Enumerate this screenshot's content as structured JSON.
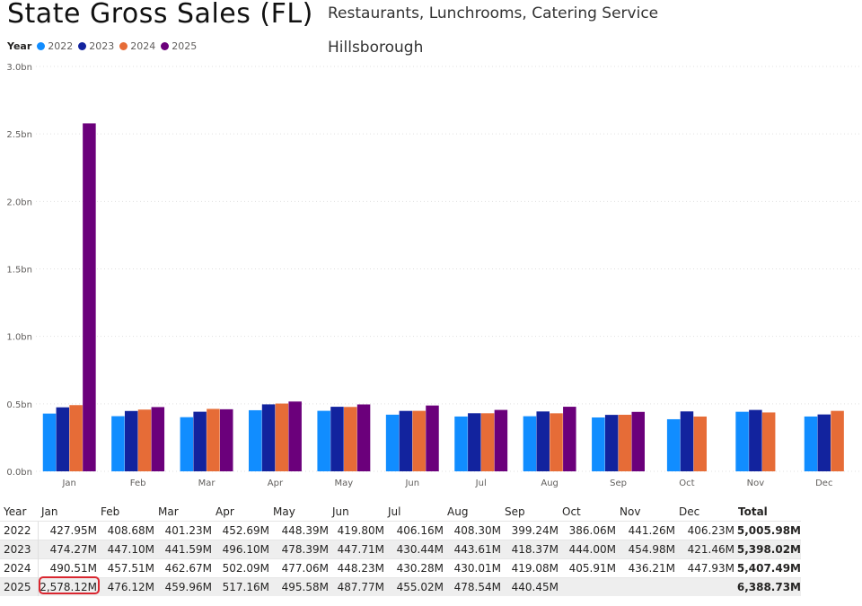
{
  "title": "State Gross Sales (FL)",
  "subtitle": "Restaurants, Lunchrooms, Catering Service",
  "county": "Hillsborough",
  "legend": {
    "title": "Year",
    "items": [
      {
        "label": "2022",
        "color": "#118DFF"
      },
      {
        "label": "2023",
        "color": "#12239E"
      },
      {
        "label": "2024",
        "color": "#E66C37"
      },
      {
        "label": "2025",
        "color": "#6B007B"
      }
    ]
  },
  "chart_data": {
    "type": "bar",
    "categories": [
      "Jan",
      "Feb",
      "Mar",
      "Apr",
      "May",
      "Jun",
      "Jul",
      "Aug",
      "Sep",
      "Oct",
      "Nov",
      "Dec"
    ],
    "series": [
      {
        "name": "2022",
        "values": [
          427.95,
          408.68,
          401.23,
          452.69,
          448.39,
          419.8,
          406.16,
          408.3,
          399.24,
          386.06,
          441.26,
          406.23
        ]
      },
      {
        "name": "2023",
        "values": [
          474.27,
          447.1,
          441.59,
          496.1,
          478.39,
          447.71,
          430.44,
          443.61,
          418.37,
          444.0,
          454.98,
          421.46
        ]
      },
      {
        "name": "2024",
        "values": [
          490.51,
          457.51,
          462.67,
          502.09,
          477.06,
          448.23,
          430.28,
          430.01,
          419.08,
          405.91,
          436.21,
          447.93
        ]
      },
      {
        "name": "2025",
        "values": [
          2578.12,
          476.12,
          459.96,
          517.16,
          495.58,
          487.77,
          455.02,
          478.54,
          440.45,
          null,
          null,
          null
        ]
      }
    ],
    "units": "M",
    "ylim": [
      0,
      3000
    ],
    "yticks": [
      {
        "value": 0,
        "label": "0.0bn"
      },
      {
        "value": 500,
        "label": "0.5bn"
      },
      {
        "value": 1000,
        "label": "1.0bn"
      },
      {
        "value": 1500,
        "label": "1.5bn"
      },
      {
        "value": 2000,
        "label": "2.0bn"
      },
      {
        "value": 2500,
        "label": "2.5bn"
      },
      {
        "value": 3000,
        "label": "3.0bn"
      }
    ],
    "grid": true,
    "legend_position": "top-left"
  },
  "table": {
    "headers": [
      "Year",
      "Jan",
      "Feb",
      "Mar",
      "Apr",
      "May",
      "Jun",
      "Jul",
      "Aug",
      "Sep",
      "Oct",
      "Nov",
      "Dec",
      "Total"
    ],
    "rows": [
      {
        "year": "2022",
        "values": [
          "427.95M",
          "408.68M",
          "401.23M",
          "452.69M",
          "448.39M",
          "419.80M",
          "406.16M",
          "408.30M",
          "399.24M",
          "386.06M",
          "441.26M",
          "406.23M"
        ],
        "total": "5,005.98M"
      },
      {
        "year": "2023",
        "values": [
          "474.27M",
          "447.10M",
          "441.59M",
          "496.10M",
          "478.39M",
          "447.71M",
          "430.44M",
          "443.61M",
          "418.37M",
          "444.00M",
          "454.98M",
          "421.46M"
        ],
        "total": "5,398.02M"
      },
      {
        "year": "2024",
        "values": [
          "490.51M",
          "457.51M",
          "462.67M",
          "502.09M",
          "477.06M",
          "448.23M",
          "430.28M",
          "430.01M",
          "419.08M",
          "405.91M",
          "436.21M",
          "447.93M"
        ],
        "total": "5,407.49M"
      },
      {
        "year": "2025",
        "values": [
          "2,578.12M",
          "476.12M",
          "459.96M",
          "517.16M",
          "495.58M",
          "487.77M",
          "455.02M",
          "478.54M",
          "440.45M",
          "",
          "",
          ""
        ],
        "total": "6,388.73M"
      }
    ],
    "highlighted_cell": {
      "row": 3,
      "col": 0
    }
  }
}
